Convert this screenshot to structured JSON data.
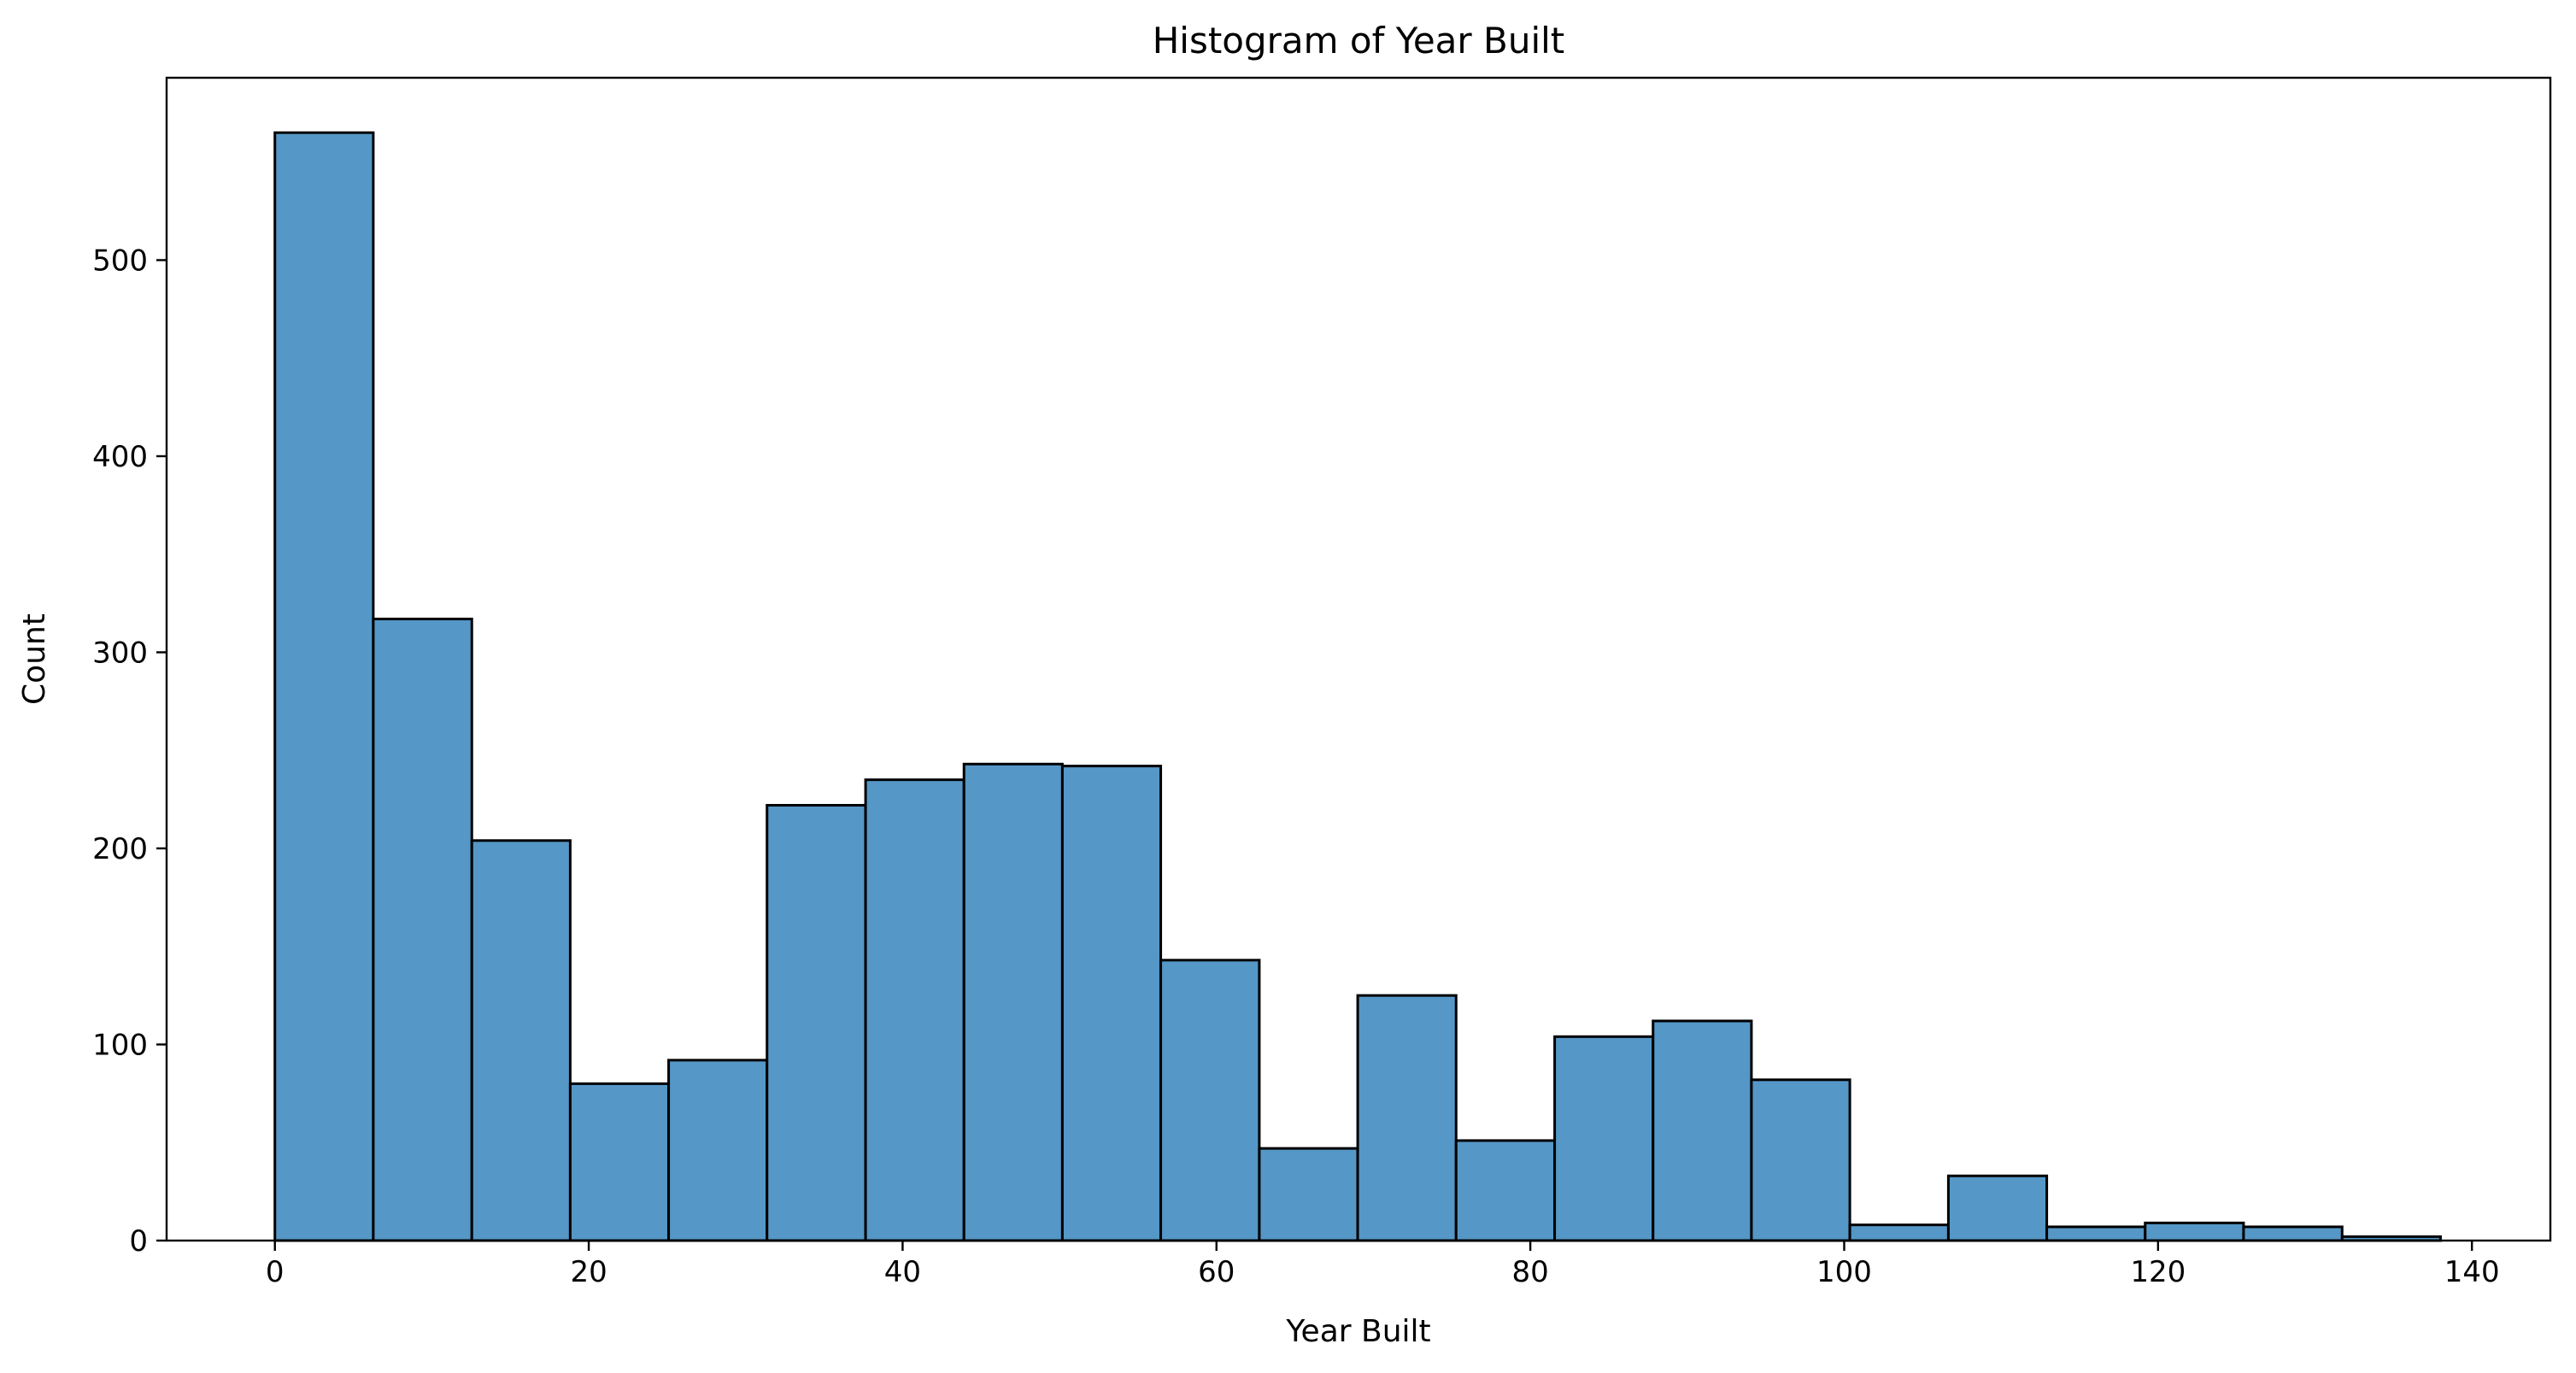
{
  "chart_data": {
    "type": "bar",
    "title": "Histogram of Year Built",
    "xlabel": "Year Built",
    "ylabel": "Count",
    "xlim": [
      -6.9,
      145.0
    ],
    "ylim": [
      0,
      593
    ],
    "xticks": [
      0,
      20,
      40,
      60,
      80,
      100,
      120,
      140
    ],
    "yticks": [
      0,
      100,
      200,
      300,
      400,
      500
    ],
    "bin_edges": [
      0,
      6.27,
      12.55,
      18.82,
      25.09,
      31.36,
      37.64,
      43.91,
      50.18,
      56.45,
      62.73,
      69.0,
      75.27,
      81.55,
      87.82,
      94.09,
      100.36,
      106.64,
      112.91,
      119.18,
      125.45,
      131.73,
      138.0
    ],
    "values": [
      565,
      317,
      204,
      80,
      92,
      222,
      235,
      243,
      242,
      143,
      47,
      125,
      51,
      104,
      112,
      82,
      8,
      33,
      7,
      9,
      7,
      2
    ],
    "bar_color": "#5597c6",
    "edge_color": "#000000",
    "grid": false,
    "legend": "none"
  }
}
